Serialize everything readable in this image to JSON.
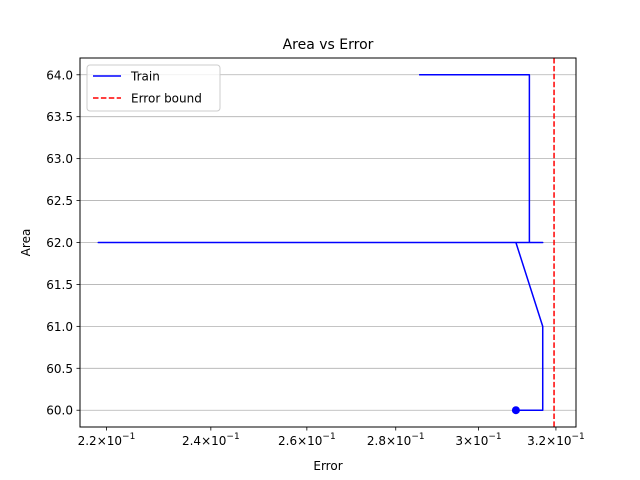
{
  "chart_data": {
    "type": "line",
    "title": "Area vs Error",
    "xlabel": "Error",
    "ylabel": "Area",
    "xscale": "log",
    "xlim": [
      0.2152,
      0.3254
    ],
    "ylim": [
      59.8,
      64.2
    ],
    "grid": "y-major",
    "legend_position": "top-left",
    "x_ticks": [
      {
        "value": 0.22,
        "base": "2.2",
        "exp": "10",
        "pow": "−1"
      },
      {
        "value": 0.24,
        "base": "2.4",
        "exp": "10",
        "pow": "−1"
      },
      {
        "value": 0.26,
        "base": "2.6",
        "exp": "10",
        "pow": "−1"
      },
      {
        "value": 0.28,
        "base": "2.8",
        "exp": "10",
        "pow": "−1"
      },
      {
        "value": 0.3,
        "base": "3",
        "exp": "10",
        "pow": "−1"
      },
      {
        "value": 0.32,
        "base": "3.2",
        "exp": "10",
        "pow": "−1"
      }
    ],
    "y_ticks": [
      "60.0",
      "60.5",
      "61.0",
      "61.5",
      "62.0",
      "62.5",
      "63.0",
      "63.5",
      "64.0"
    ],
    "series": [
      {
        "name": "Train",
        "color": "#0000ff",
        "style": "solid",
        "x": [
          0.2855,
          0.313,
          0.313,
          0.2185,
          0.3165,
          0.3095,
          0.3165,
          0.3165,
          0.3095
        ],
        "y": [
          64.0,
          64.0,
          62.0,
          62.0,
          62.0,
          62.0,
          61.0,
          60.0,
          60.0
        ]
      }
    ],
    "marker": {
      "x": 0.3095,
      "y": 60.0,
      "color": "#0000ff"
    },
    "reference_lines": [
      {
        "name": "Error bound",
        "orientation": "vertical",
        "x": 0.3195,
        "color": "#ff0000",
        "style": "dashed"
      }
    ]
  }
}
